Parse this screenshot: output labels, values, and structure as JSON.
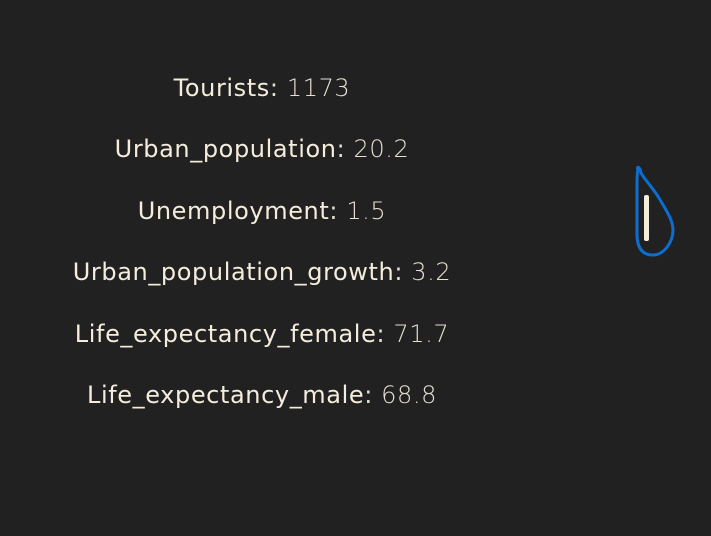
{
  "stats": [
    {
      "key": "Tourists",
      "value": "1173"
    },
    {
      "key": "Urban_population",
      "value": "20.2"
    },
    {
      "key": "Unemployment",
      "value": "1.5"
    },
    {
      "key": "Urban_population_growth",
      "value": "3.2"
    },
    {
      "key": "Life_expectancy_female",
      "value": "71.7"
    },
    {
      "key": "Life_expectancy_male",
      "value": "68.8"
    }
  ],
  "separator": ": ",
  "colors": {
    "background": "#212121",
    "text": "#f4ecdc",
    "handle_outline": "#0d6ecf",
    "handle_fill": "#f4ecdc"
  },
  "icons": {
    "handle": "drop-handle-icon"
  }
}
